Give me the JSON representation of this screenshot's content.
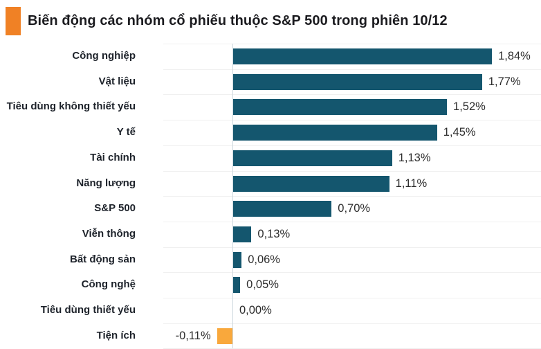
{
  "header": {
    "title": "Biến động các nhóm cổ phiếu thuộc S&P 500 trong phiên 10/12",
    "accent_color": "#F08125"
  },
  "chart_data": {
    "type": "bar",
    "orientation": "horizontal",
    "title": "Biến động các nhóm cổ phiếu thuộc S&P 500 trong phiên 10/12",
    "categories": [
      "Công nghiệp",
      "Vật liệu",
      "Tiêu dùng không thiết yếu",
      "Y tế",
      "Tài chính",
      "Năng lượng",
      "S&P 500",
      "Viễn thông",
      "Bất động sản",
      "Công nghệ",
      "Tiêu dùng thiết yếu",
      "Tiện ích"
    ],
    "values": [
      1.84,
      1.77,
      1.52,
      1.45,
      1.13,
      1.11,
      0.7,
      0.13,
      0.06,
      0.05,
      0.0,
      -0.11
    ],
    "value_labels": [
      "1,84%",
      "1,77%",
      "1,52%",
      "1,45%",
      "1,13%",
      "1,11%",
      "0,70%",
      "0,13%",
      "0,06%",
      "0,05%",
      "0,00%",
      "-0,11%"
    ],
    "unit": "%",
    "decimal_separator": ",",
    "xlim": [
      -0.25,
      2.0
    ],
    "grid": "horizontal row separators, vertical zero axis",
    "legend": "none",
    "bar_positive_color": "#14566E",
    "bar_negative_color": "#F9A83C",
    "gridline_color": "#F0F0F0",
    "axis_line_color": "#CDD8DE"
  }
}
